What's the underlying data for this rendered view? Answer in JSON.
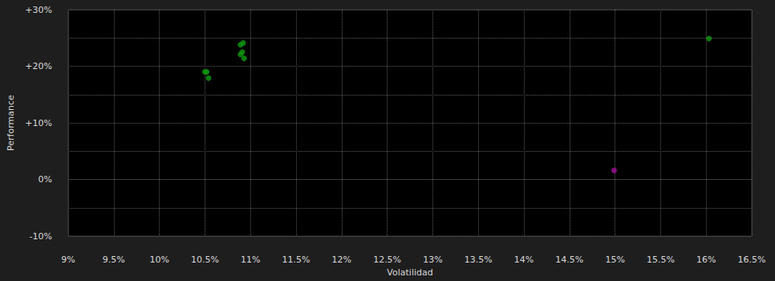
{
  "chart_data": {
    "type": "scatter",
    "x_label": "Volatilidad",
    "y_label": "Performance",
    "xlim": [
      9,
      16.5
    ],
    "xticks": [
      {
        "value": 9,
        "label": "9%"
      },
      {
        "value": 9.5,
        "label": "9.5%"
      },
      {
        "value": 10,
        "label": "10%"
      },
      {
        "value": 10.5,
        "label": "10.5%"
      },
      {
        "value": 11,
        "label": "11%"
      },
      {
        "value": 11.5,
        "label": "11.5%"
      },
      {
        "value": 12,
        "label": "12%"
      },
      {
        "value": 12.5,
        "label": "12.5%"
      },
      {
        "value": 13,
        "label": "13%"
      },
      {
        "value": 13.5,
        "label": "13.5%"
      },
      {
        "value": 14,
        "label": "14%"
      },
      {
        "value": 14.5,
        "label": "14.5%"
      },
      {
        "value": 15,
        "label": "15%"
      },
      {
        "value": 15.5,
        "label": "15.5%"
      },
      {
        "value": 16,
        "label": "16%"
      },
      {
        "value": 16.5,
        "label": "16.5%"
      }
    ],
    "ylim": [
      -10,
      30
    ],
    "yticks": [
      {
        "value": -10,
        "label": "-10%"
      },
      {
        "value": 0,
        "label": "0%"
      },
      {
        "value": 10,
        "label": "+10%"
      },
      {
        "value": 20,
        "label": "+20%"
      },
      {
        "value": 30,
        "label": "+30%"
      }
    ],
    "grid": true,
    "series": [
      {
        "color": "#0f9a0f",
        "marker": "circle",
        "x": [
          10.5,
          10.52,
          10.54,
          10.89,
          10.92,
          10.91,
          10.89,
          10.93,
          16.03
        ],
        "values": [
          19.0,
          19.0,
          17.9,
          23.8,
          24.1,
          22.5,
          22.1,
          21.4,
          24.9
        ]
      },
      {
        "color": "#a0109a",
        "marker": "circle",
        "x": [
          14.99
        ],
        "values": [
          1.6
        ]
      }
    ]
  }
}
